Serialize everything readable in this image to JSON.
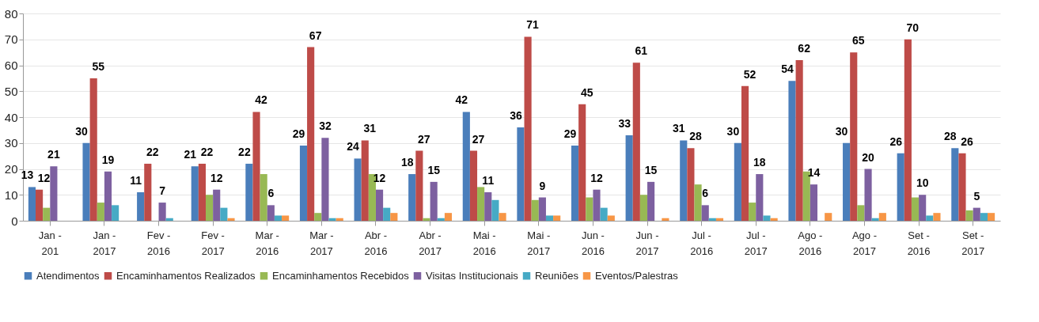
{
  "chart_data": {
    "type": "bar",
    "categories": [
      "Jan - 201",
      "Jan - 2017",
      "Fev - 2016",
      "Fev - 2017",
      "Mar - 2016",
      "Mar - 2017",
      "Abr - 2016",
      "Abr - 2017",
      "Mai - 2016",
      "Mai - 2017",
      "Jun - 2016",
      "Jun - 2017",
      "Jul - 2016",
      "Jul - 2017",
      "Ago - 2016",
      "Ago - 2017",
      "Set - 2016",
      "Set - 2017"
    ],
    "series": [
      {
        "name": "Atendimentos",
        "color": "#4a7ebb",
        "values": [
          13,
          30,
          11,
          21,
          22,
          29,
          24,
          18,
          42,
          36,
          29,
          33,
          31,
          30,
          54,
          30,
          26,
          28
        ],
        "value_labels": [
          "13",
          "30",
          "11",
          "21",
          "22",
          "29",
          "24",
          "18",
          "42",
          "36",
          "29",
          "33",
          "31",
          "30",
          "54",
          "30",
          "26",
          "28"
        ]
      },
      {
        "name": "Encaminhamentos Realizados",
        "color": "#be4b48",
        "values": [
          12,
          55,
          22,
          22,
          42,
          67,
          31,
          27,
          27,
          71,
          45,
          61,
          28,
          52,
          62,
          65,
          70,
          26
        ],
        "value_labels": [
          "12",
          "55",
          "22",
          "22",
          "42",
          "67",
          "31",
          "27",
          "27",
          "71",
          "45",
          "61",
          "28",
          "52",
          "62",
          "65",
          "70",
          "26"
        ]
      },
      {
        "name": "Encaminhamentos Recebidos",
        "color": "#98b954",
        "values": [
          5,
          7,
          0,
          10,
          18,
          3,
          18,
          1,
          13,
          8,
          9,
          10,
          14,
          7,
          19,
          6,
          9,
          4
        ]
      },
      {
        "name": "Visitas Institucionais",
        "color": "#7d60a0",
        "values": [
          21,
          19,
          7,
          12,
          6,
          32,
          12,
          15,
          11,
          9,
          12,
          15,
          6,
          18,
          14,
          20,
          10,
          5
        ],
        "value_labels": [
          "21",
          "19",
          "7",
          "12",
          "6",
          "32",
          "12",
          "15",
          "11",
          "9",
          "12",
          "15",
          "6",
          "18",
          "14",
          "20",
          "10",
          "5"
        ]
      },
      {
        "name": "Reuniões",
        "color": "#46aac5",
        "values": [
          0,
          6,
          1,
          5,
          2,
          1,
          5,
          1,
          8,
          2,
          5,
          0,
          1,
          2,
          0,
          1,
          2,
          3
        ]
      },
      {
        "name": "Eventos/Palestras",
        "color": "#f79646",
        "values": [
          0,
          0,
          0,
          1,
          2,
          1,
          3,
          3,
          3,
          2,
          2,
          1,
          1,
          1,
          3,
          3,
          3,
          3
        ]
      }
    ],
    "ylim": [
      0,
      80
    ],
    "yticks": [
      0,
      10,
      20,
      30,
      40,
      50,
      60,
      70,
      80
    ],
    "grid": "y",
    "legend": "bottom"
  }
}
